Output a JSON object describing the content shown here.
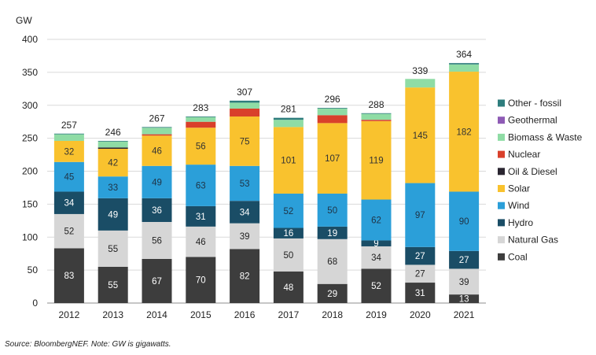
{
  "chart_data": {
    "type": "stacked-bar",
    "ylabel": "GW",
    "ylim": [
      0,
      400
    ],
    "yticks": [
      0,
      50,
      100,
      150,
      200,
      250,
      300,
      350,
      400
    ],
    "grid": true,
    "legend_position": "right",
    "categories": [
      "2012",
      "2013",
      "2014",
      "2015",
      "2016",
      "2017",
      "2018",
      "2019",
      "2020",
      "2021"
    ],
    "totals": [
      257,
      246,
      267,
      283,
      307,
      281,
      296,
      288,
      339,
      364
    ],
    "series": [
      {
        "name": "Coal",
        "color": "#3d3d3d",
        "label_color": "#ffffff",
        "values": [
          83,
          55,
          67,
          70,
          82,
          48,
          29,
          52,
          31,
          13
        ],
        "labels": [
          "83",
          "55",
          "67",
          "70",
          "82",
          "48",
          "29",
          "52",
          "31",
          "13"
        ]
      },
      {
        "name": "Natural Gas",
        "color": "#d6d6d6",
        "label_color": "#222222",
        "values": [
          52,
          55,
          56,
          46,
          39,
          50,
          68,
          34,
          27,
          39
        ],
        "labels": [
          "52",
          "55",
          "56",
          "46",
          "39",
          "50",
          "68",
          "34",
          "27",
          "39"
        ]
      },
      {
        "name": "Hydro",
        "color": "#1a4d66",
        "label_color": "#ffffff",
        "values": [
          34,
          49,
          36,
          31,
          34,
          16,
          19,
          9,
          27,
          27
        ],
        "labels": [
          "34",
          "49",
          "36",
          "31",
          "34",
          "16",
          "19",
          "9",
          "27",
          "27"
        ]
      },
      {
        "name": "Wind",
        "color": "#2b9fd9",
        "label_color": "#1f3346",
        "values": [
          45,
          33,
          49,
          63,
          53,
          52,
          50,
          62,
          97,
          90
        ],
        "labels": [
          "45",
          "33",
          "49",
          "63",
          "53",
          "52",
          "50",
          "62",
          "97",
          "90"
        ]
      },
      {
        "name": "Solar",
        "color": "#f9c22e",
        "label_color": "#333333",
        "values": [
          32,
          42,
          46,
          56,
          75,
          101,
          107,
          119,
          145,
          182
        ],
        "labels": [
          "32",
          "42",
          "46",
          "56",
          "75",
          "101",
          "107",
          "119",
          "145",
          "182"
        ]
      },
      {
        "name": "Oil & Diesel",
        "color": "#2a2530",
        "label_color": "#ffffff",
        "values": [
          0,
          2,
          0,
          0,
          0,
          0,
          0,
          0,
          0,
          0
        ],
        "labels": [
          "",
          "",
          "",
          "",
          "",
          "",
          "",
          "",
          "",
          ""
        ]
      },
      {
        "name": "Nuclear",
        "color": "#d9402b",
        "label_color": "#ffffff",
        "values": [
          0,
          0,
          2,
          9,
          12,
          0,
          12,
          2,
          0,
          0
        ],
        "labels": [
          "",
          "",
          "",
          "",
          "",
          "",
          "",
          "",
          "",
          ""
        ]
      },
      {
        "name": "Biomass & Waste",
        "color": "#8fdca5",
        "label_color": "#222222",
        "values": [
          10,
          9,
          10,
          7,
          9,
          11,
          10,
          9,
          13,
          11
        ],
        "labels": [
          "",
          "",
          "",
          "",
          "",
          "",
          "",
          "",
          "",
          ""
        ]
      },
      {
        "name": "Geothermal",
        "color": "#8e5bb5",
        "label_color": "#ffffff",
        "values": [
          0,
          0,
          0,
          0,
          0,
          0,
          0,
          0,
          0,
          0
        ],
        "labels": [
          "",
          "",
          "",
          "",
          "",
          "",
          "",
          "",
          "",
          ""
        ]
      },
      {
        "name": "Other - fossil",
        "color": "#2e7d7d",
        "label_color": "#ffffff",
        "values": [
          1,
          1,
          1,
          1,
          3,
          3,
          1,
          1,
          0,
          2
        ],
        "labels": [
          "",
          "",
          "",
          "",
          "",
          "",
          "",
          "",
          "",
          ""
        ]
      }
    ]
  },
  "source_note": "Source: BloombergNEF. Note: GW is gigawatts."
}
